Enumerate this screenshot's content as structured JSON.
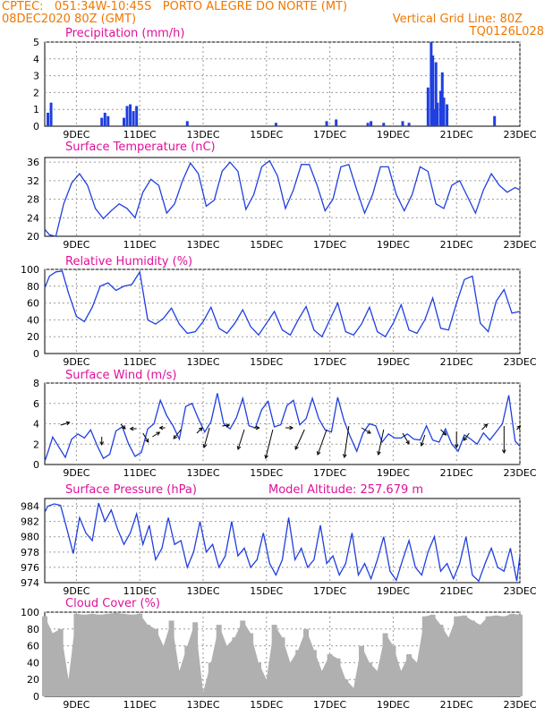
{
  "header": {
    "left_line1": "CPTEC:   051:34W-10:45S   PORTO ALEGRE DO NORTE (MT)",
    "left_line2": "08DEC2020 80Z (GMT)",
    "right_line2": "Vertical Grid Line: 80Z",
    "right_line3": "TQ0126L028"
  },
  "colors": {
    "header": "#f07800",
    "title": "#e0109a",
    "series": "#1f3fe0",
    "cloud": "#b0b0b0"
  },
  "date_ticks": [
    "9DEC",
    "11DEC",
    "13DEC",
    "15DEC",
    "17DEC",
    "19DEC",
    "21DEC",
    "23DEC"
  ],
  "chart_data": [
    {
      "id": "precip",
      "type": "bar",
      "title": "Precipitation (mm/h)",
      "ylim": [
        0,
        5
      ],
      "yticks": [
        0,
        1,
        2,
        3,
        4,
        5
      ],
      "x": [
        8.1,
        8.2,
        9.8,
        9.9,
        10.0,
        10.5,
        10.6,
        10.7,
        10.8,
        10.9,
        12.5,
        15.3,
        16.9,
        17.2,
        18.2,
        18.3,
        18.7,
        19.3,
        19.5,
        20.1,
        20.2,
        20.25,
        20.3,
        20.35,
        20.4,
        20.5,
        20.55,
        20.6,
        20.7,
        22.2
      ],
      "values": [
        0.8,
        1.4,
        0.5,
        0.8,
        0.6,
        0.5,
        1.2,
        1.3,
        0.9,
        1.2,
        0.3,
        0.2,
        0.3,
        0.4,
        0.2,
        0.3,
        0.2,
        0.3,
        0.2,
        2.3,
        5.0,
        4.2,
        1.0,
        3.8,
        1.4,
        2.1,
        3.2,
        1.7,
        1.3,
        0.6
      ]
    },
    {
      "id": "temp",
      "type": "line",
      "title": "Surface Temperature (nC)",
      "ylim": [
        20,
        37
      ],
      "yticks": [
        20,
        24,
        28,
        32,
        36
      ],
      "x": [
        8.0,
        8.15,
        8.35,
        8.6,
        8.85,
        9.1,
        9.35,
        9.6,
        9.85,
        10.1,
        10.35,
        10.6,
        10.85,
        11.1,
        11.35,
        11.6,
        11.85,
        12.1,
        12.35,
        12.6,
        12.85,
        13.1,
        13.35,
        13.6,
        13.85,
        14.1,
        14.35,
        14.6,
        14.85,
        15.1,
        15.35,
        15.6,
        15.85,
        16.1,
        16.35,
        16.6,
        16.85,
        17.1,
        17.35,
        17.6,
        17.85,
        18.1,
        18.35,
        18.6,
        18.85,
        19.1,
        19.35,
        19.6,
        19.85,
        20.1,
        20.35,
        20.6,
        20.85,
        21.1,
        21.35,
        21.6,
        21.85,
        22.1,
        22.35,
        22.6,
        22.85,
        23.0
      ],
      "values": [
        21.5,
        20.3,
        20.0,
        27.0,
        31.5,
        33.5,
        31.0,
        26.0,
        23.8,
        25.5,
        27.0,
        26.0,
        24.0,
        29.5,
        32.3,
        31.0,
        25.0,
        27.0,
        32.0,
        35.8,
        33.5,
        26.5,
        27.8,
        34.0,
        36.0,
        34.0,
        25.8,
        29.0,
        35.0,
        36.3,
        33.0,
        26.0,
        30.0,
        35.5,
        35.5,
        31.0,
        25.5,
        28.0,
        35.0,
        35.5,
        30.0,
        25.0,
        29.0,
        35.0,
        35.0,
        29.0,
        25.5,
        29.0,
        35.0,
        34.0,
        27.0,
        26.0,
        31.0,
        32.0,
        28.5,
        25.0,
        30.0,
        33.5,
        31.0,
        29.5,
        30.5,
        30.0
      ]
    },
    {
      "id": "rh",
      "type": "line",
      "title": "Relative Humidity (%)",
      "ylim": [
        0,
        100
      ],
      "yticks": [
        0,
        20,
        40,
        60,
        80,
        100
      ],
      "x": [
        8.0,
        8.15,
        8.35,
        8.55,
        8.75,
        9.0,
        9.25,
        9.5,
        9.75,
        10.0,
        10.25,
        10.5,
        10.75,
        11.0,
        11.25,
        11.5,
        11.75,
        12.0,
        12.25,
        12.5,
        12.75,
        13.0,
        13.25,
        13.5,
        13.75,
        14.0,
        14.25,
        14.5,
        14.75,
        15.0,
        15.25,
        15.5,
        15.75,
        16.0,
        16.25,
        16.5,
        16.75,
        17.0,
        17.25,
        17.5,
        17.75,
        18.0,
        18.25,
        18.5,
        18.75,
        19.0,
        19.25,
        19.5,
        19.75,
        20.0,
        20.25,
        20.5,
        20.75,
        21.0,
        21.25,
        21.5,
        21.75,
        22.0,
        22.25,
        22.5,
        22.75,
        23.0
      ],
      "values": [
        78,
        92,
        97,
        98,
        72,
        44,
        38,
        55,
        80,
        84,
        75,
        80,
        82,
        97,
        40,
        35,
        42,
        54,
        35,
        24,
        26,
        38,
        55,
        30,
        24,
        36,
        52,
        32,
        22,
        36,
        50,
        28,
        22,
        40,
        56,
        28,
        20,
        40,
        60,
        26,
        22,
        35,
        55,
        26,
        20,
        36,
        58,
        28,
        24,
        40,
        66,
        30,
        28,
        60,
        88,
        92,
        36,
        26,
        62,
        76,
        48,
        50
      ]
    },
    {
      "id": "wind",
      "type": "line",
      "title": "Surface Wind (m/s)",
      "ylim": [
        0,
        8
      ],
      "yticks": [
        0,
        2,
        4,
        6,
        8
      ],
      "x": [
        8.0,
        8.1,
        8.25,
        8.45,
        8.65,
        8.85,
        9.05,
        9.25,
        9.45,
        9.65,
        9.85,
        10.05,
        10.25,
        10.45,
        10.65,
        10.85,
        11.05,
        11.25,
        11.45,
        11.65,
        11.85,
        12.05,
        12.25,
        12.45,
        12.65,
        12.85,
        13.05,
        13.25,
        13.45,
        13.65,
        13.85,
        14.05,
        14.25,
        14.45,
        14.65,
        14.85,
        15.05,
        15.25,
        15.45,
        15.65,
        15.85,
        16.05,
        16.25,
        16.45,
        16.65,
        16.85,
        17.05,
        17.25,
        17.45,
        17.65,
        17.85,
        18.05,
        18.25,
        18.45,
        18.65,
        18.85,
        19.05,
        19.25,
        19.45,
        19.65,
        19.85,
        20.05,
        20.25,
        20.45,
        20.65,
        20.85,
        21.05,
        21.25,
        21.45,
        21.65,
        21.85,
        22.05,
        22.25,
        22.45,
        22.65,
        22.85,
        23.0
      ],
      "values": [
        0.3,
        1.2,
        2.7,
        1.7,
        0.7,
        2.5,
        3.0,
        2.6,
        3.4,
        1.9,
        0.6,
        1.0,
        3.3,
        3.7,
        2.0,
        0.8,
        1.2,
        3.5,
        4.0,
        6.3,
        4.8,
        3.8,
        2.5,
        5.7,
        6.0,
        4.5,
        3.2,
        4.2,
        7.0,
        4.0,
        3.5,
        4.6,
        6.5,
        3.8,
        3.6,
        5.4,
        6.2,
        3.7,
        3.9,
        5.8,
        6.3,
        3.9,
        4.5,
        6.5,
        4.5,
        3.4,
        3.2,
        6.6,
        4.3,
        2.7,
        1.3,
        3.1,
        4.0,
        3.8,
        2.2,
        3.0,
        2.6,
        2.6,
        3.0,
        2.5,
        2.4,
        3.8,
        2.4,
        2.2,
        3.5,
        2.0,
        1.3,
        2.9,
        2.5,
        2.0,
        3.1,
        2.4,
        3.2,
        4.0,
        6.8,
        2.3,
        1.8
      ]
    },
    {
      "id": "pressure",
      "type": "line",
      "title": "Surface Pressure (hPa)",
      "annotation": "Model Altitude: 257.679 m",
      "ylim": [
        974,
        985
      ],
      "yticks": [
        974,
        976,
        978,
        980,
        982,
        984
      ],
      "x": [
        8.0,
        8.1,
        8.3,
        8.5,
        8.7,
        8.9,
        9.1,
        9.3,
        9.5,
        9.7,
        9.9,
        10.1,
        10.3,
        10.5,
        10.7,
        10.9,
        11.1,
        11.3,
        11.5,
        11.7,
        11.9,
        12.1,
        12.3,
        12.5,
        12.7,
        12.9,
        13.1,
        13.3,
        13.5,
        13.7,
        13.9,
        14.1,
        14.3,
        14.5,
        14.7,
        14.9,
        15.1,
        15.3,
        15.5,
        15.7,
        15.9,
        16.1,
        16.3,
        16.5,
        16.7,
        16.9,
        17.1,
        17.3,
        17.5,
        17.7,
        17.9,
        18.1,
        18.3,
        18.5,
        18.7,
        18.9,
        19.1,
        19.3,
        19.5,
        19.7,
        19.9,
        20.1,
        20.3,
        20.5,
        20.7,
        20.9,
        21.1,
        21.3,
        21.5,
        21.7,
        21.9,
        22.1,
        22.3,
        22.5,
        22.7,
        22.9,
        23.0
      ],
      "values": [
        983.2,
        984.0,
        984.3,
        984.1,
        981.0,
        977.8,
        982.5,
        980.5,
        979.5,
        984.4,
        982.0,
        983.5,
        981.0,
        979.0,
        980.5,
        983.0,
        979.0,
        981.5,
        977.0,
        978.5,
        982.5,
        979.0,
        979.5,
        976.0,
        978.0,
        982.0,
        978.0,
        979.0,
        976.0,
        977.5,
        982.0,
        977.5,
        978.5,
        976.0,
        977.0,
        980.5,
        976.5,
        975.0,
        977.0,
        982.5,
        977.0,
        978.5,
        976.0,
        977.0,
        981.5,
        976.5,
        977.5,
        975.0,
        976.5,
        980.5,
        975.0,
        976.5,
        974.5,
        977.0,
        980.0,
        975.5,
        974.3,
        977.0,
        979.5,
        976.0,
        975.0,
        978.0,
        980.0,
        975.5,
        976.5,
        974.5,
        976.5,
        980.0,
        975.0,
        974.2,
        976.5,
        978.5,
        976.0,
        975.5,
        978.5,
        974.2,
        977.5
      ]
    },
    {
      "id": "cloud",
      "type": "bar",
      "title": "Cloud Cover (%)",
      "ylim": [
        0,
        100
      ],
      "yticks": [
        0,
        20,
        40,
        60,
        80,
        100
      ],
      "x": [
        8.0,
        8.25,
        8.5,
        8.75,
        9.0,
        9.25,
        9.5,
        9.75,
        10.0,
        10.25,
        10.5,
        10.75,
        11.0,
        11.25,
        11.5,
        11.75,
        12.0,
        12.25,
        12.5,
        12.75,
        13.0,
        13.25,
        13.5,
        13.75,
        14.0,
        14.25,
        14.5,
        14.75,
        15.0,
        15.25,
        15.5,
        15.75,
        16.0,
        16.25,
        16.5,
        16.75,
        17.0,
        17.25,
        17.5,
        17.75,
        18.0,
        18.25,
        18.5,
        18.75,
        19.0,
        19.25,
        19.5,
        19.75,
        20.0,
        20.25,
        20.5,
        20.75,
        21.0,
        21.25,
        21.5,
        21.75,
        22.0,
        22.25,
        22.5,
        22.75,
        23.0
      ],
      "values": [
        95,
        75,
        80,
        20,
        98,
        97,
        98,
        97,
        98,
        99,
        98,
        97,
        98,
        85,
        80,
        60,
        90,
        30,
        60,
        88,
        5,
        40,
        85,
        60,
        70,
        90,
        75,
        40,
        20,
        85,
        70,
        40,
        55,
        80,
        55,
        30,
        50,
        45,
        20,
        10,
        60,
        40,
        30,
        75,
        60,
        30,
        50,
        40,
        95,
        97,
        85,
        70,
        95,
        96,
        90,
        85,
        95,
        96,
        95,
        98,
        97
      ]
    }
  ]
}
